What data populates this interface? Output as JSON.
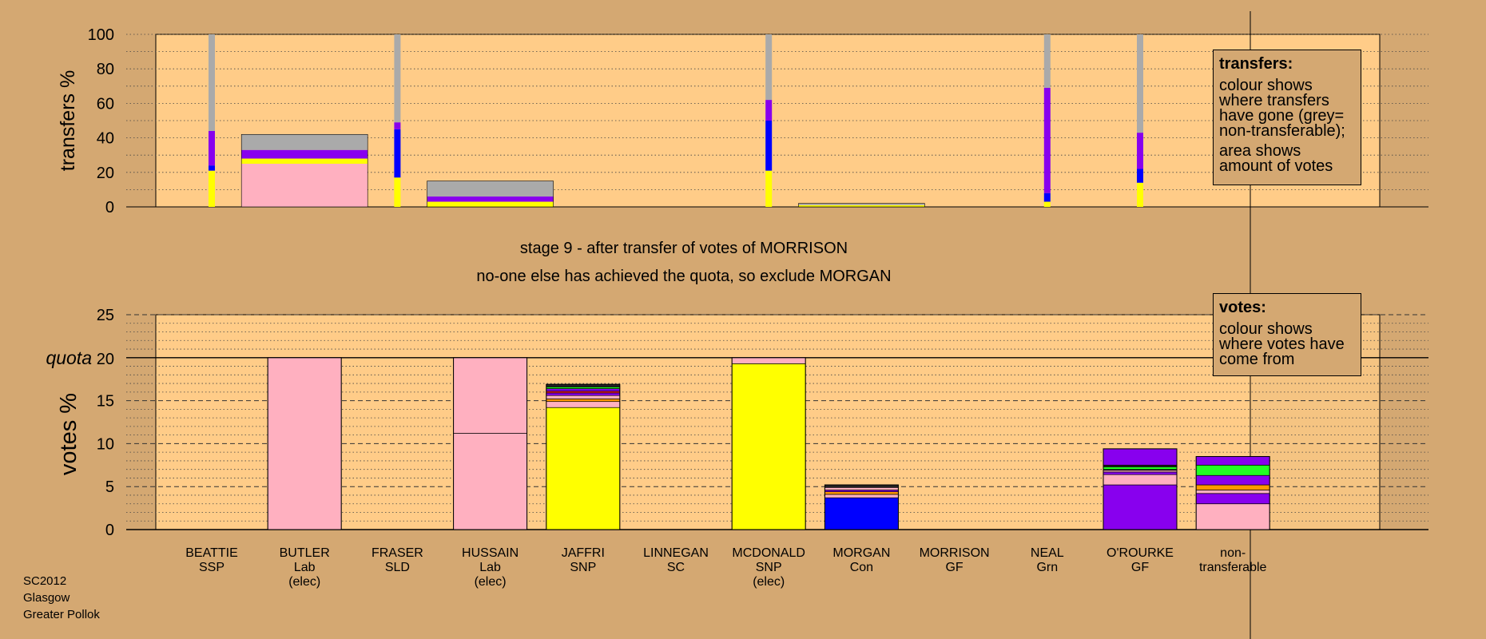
{
  "caption": {
    "stage": "stage 9 - after transfer of votes of MORRISON",
    "note": "no-one else has achieved the quota, so exclude MORGAN"
  },
  "footer": {
    "line1": "SC2012",
    "line2": "Glasgow",
    "line3": "Greater Pollok"
  },
  "legend_transfers": {
    "heading": "transfers:",
    "text1": "colour shows where transfers have gone (grey= non-transferable);",
    "text2": "area shows amount of votes"
  },
  "legend_votes": {
    "heading": "votes:",
    "text1": "colour shows where votes have come from"
  },
  "colors": {
    "background": "#d4a872",
    "plot": "#ffcc88",
    "pink": "#ffb0c0",
    "yellow": "#ffff00",
    "purple": "#8800ee",
    "blue": "#0000ff",
    "grey": "#aaaaaa",
    "green": "#22ff22",
    "orange": "#ff9900",
    "red": "#ff2222",
    "black": "#222222"
  },
  "chart_data": [
    {
      "type": "bar",
      "ylabel": "transfers %",
      "ylim": [
        0,
        100
      ],
      "yticks": [
        0,
        20,
        40,
        60,
        80,
        100
      ],
      "grid": true,
      "columns": [
        {
          "index": 0,
          "width": "narrow",
          "segments": [
            {
              "color": "yellow",
              "value": 21
            },
            {
              "color": "blue",
              "value": 3
            },
            {
              "color": "purple",
              "value": 20
            },
            {
              "color": "grey",
              "value": 56
            }
          ]
        },
        {
          "index": 1,
          "width": "wide",
          "segments": [
            {
              "color": "pink",
              "value": 25
            },
            {
              "color": "yellow",
              "value": 3
            },
            {
              "color": "purple",
              "value": 5
            },
            {
              "color": "grey",
              "value": 9
            }
          ]
        },
        {
          "index": 2,
          "width": "narrow",
          "segments": [
            {
              "color": "yellow",
              "value": 17
            },
            {
              "color": "blue",
              "value": 28
            },
            {
              "color": "purple",
              "value": 4
            },
            {
              "color": "grey",
              "value": 51
            }
          ]
        },
        {
          "index": 3,
          "width": "wide",
          "segments": [
            {
              "color": "yellow",
              "value": 3
            },
            {
              "color": "purple",
              "value": 3
            },
            {
              "color": "grey",
              "value": 9
            }
          ]
        },
        {
          "index": 6,
          "width": "narrow",
          "segments": [
            {
              "color": "yellow",
              "value": 21
            },
            {
              "color": "blue",
              "value": 29
            },
            {
              "color": "purple",
              "value": 12
            },
            {
              "color": "grey",
              "value": 38
            }
          ]
        },
        {
          "index": 7,
          "width": "wide",
          "segments": [
            {
              "color": "yellow",
              "value": 1
            },
            {
              "color": "grey",
              "value": 1
            }
          ]
        },
        {
          "index": 9,
          "width": "narrow",
          "segments": [
            {
              "color": "yellow",
              "value": 3
            },
            {
              "color": "blue",
              "value": 5
            },
            {
              "color": "purple",
              "value": 61
            },
            {
              "color": "grey",
              "value": 31
            }
          ]
        },
        {
          "index": 10,
          "width": "narrow",
          "segments": [
            {
              "color": "yellow",
              "value": 14
            },
            {
              "color": "blue",
              "value": 8
            },
            {
              "color": "purple",
              "value": 21
            },
            {
              "color": "grey",
              "value": 57
            }
          ]
        }
      ]
    },
    {
      "type": "bar",
      "ylabel": "votes %",
      "quota_label": "quota",
      "quota": 20,
      "ylim": [
        0,
        25
      ],
      "yticks": [
        0,
        5,
        10,
        15,
        20,
        25
      ],
      "grid": true,
      "categories": [
        {
          "name": "BEATTIE",
          "party": "SSP",
          "status": ""
        },
        {
          "name": "BUTLER",
          "party": "Lab",
          "status": "(elec)"
        },
        {
          "name": "FRASER",
          "party": "SLD",
          "status": ""
        },
        {
          "name": "HUSSAIN",
          "party": "Lab",
          "status": "(elec)"
        },
        {
          "name": "JAFFRI",
          "party": "SNP",
          "status": ""
        },
        {
          "name": "LINNEGAN",
          "party": "SC",
          "status": ""
        },
        {
          "name": "MCDONALD",
          "party": "SNP",
          "status": "(elec)"
        },
        {
          "name": "MORGAN",
          "party": "Con",
          "status": ""
        },
        {
          "name": "MORRISON",
          "party": "GF",
          "status": ""
        },
        {
          "name": "NEAL",
          "party": "Grn",
          "status": ""
        },
        {
          "name": "O'ROURKE",
          "party": "GF",
          "status": ""
        },
        {
          "name": "non-",
          "party": "transferable",
          "status": ""
        }
      ],
      "bars": [
        {
          "index": 1,
          "segments": [
            {
              "color": "pink",
              "value": 20
            }
          ]
        },
        {
          "index": 3,
          "segments": [
            {
              "color": "pink",
              "value": 11.2
            },
            {
              "color": "pink",
              "value": 8.8
            }
          ]
        },
        {
          "index": 4,
          "segments": [
            {
              "color": "yellow",
              "value": 14.2
            },
            {
              "color": "pink",
              "value": 0.7
            },
            {
              "color": "orange",
              "value": 0.3
            },
            {
              "color": "pink",
              "value": 0.4
            },
            {
              "color": "purple",
              "value": 0.3
            },
            {
              "color": "red",
              "value": 0.2
            },
            {
              "color": "purple",
              "value": 0.3
            },
            {
              "color": "green",
              "value": 0.2
            },
            {
              "color": "black",
              "value": 0.3
            }
          ]
        },
        {
          "index": 6,
          "segments": [
            {
              "color": "yellow",
              "value": 19.3
            },
            {
              "color": "pink",
              "value": 0.7
            }
          ]
        },
        {
          "index": 7,
          "segments": [
            {
              "color": "blue",
              "value": 3.7
            },
            {
              "color": "pink",
              "value": 0.4
            },
            {
              "color": "orange",
              "value": 0.3
            },
            {
              "color": "purple",
              "value": 0.2
            },
            {
              "color": "pink",
              "value": 0.3
            },
            {
              "color": "black",
              "value": 0.3
            }
          ]
        },
        {
          "index": 10,
          "segments": [
            {
              "color": "purple",
              "value": 5.2
            },
            {
              "color": "pink",
              "value": 1.2
            },
            {
              "color": "purple",
              "value": 0.3
            },
            {
              "color": "pink",
              "value": 0.2
            },
            {
              "color": "black",
              "value": 0.1
            },
            {
              "color": "green",
              "value": 0.3
            },
            {
              "color": "black",
              "value": 0.2
            },
            {
              "color": "purple",
              "value": 1.9
            }
          ]
        },
        {
          "index": 11,
          "segments": [
            {
              "color": "pink",
              "value": 3.0
            },
            {
              "color": "purple",
              "value": 1.2
            },
            {
              "color": "pink",
              "value": 0.4
            },
            {
              "color": "orange",
              "value": 0.6
            },
            {
              "color": "purple",
              "value": 1.1
            },
            {
              "color": "green",
              "value": 1.2
            },
            {
              "color": "purple",
              "value": 1.0
            }
          ]
        }
      ]
    }
  ]
}
